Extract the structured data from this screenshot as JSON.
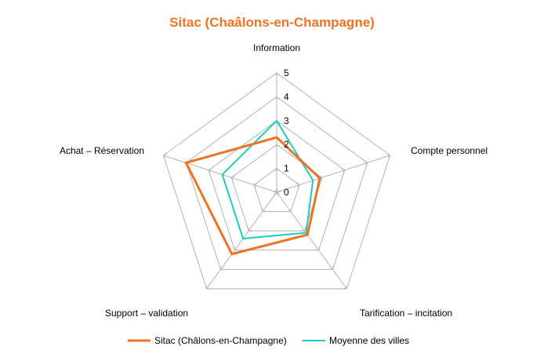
{
  "chart_data": {
    "type": "radar",
    "title": "Sitac (Chaâlons-en-Champagne)",
    "categories": [
      "Information",
      "Compte personnel",
      "Tarification – incitation",
      "Support – validation",
      "Achat – Réservation"
    ],
    "rmin": 0,
    "rmax": 5,
    "ticks": [
      "0",
      "1",
      "2",
      "3",
      "4",
      "5"
    ],
    "grid": true,
    "legend_position": "bottom",
    "series": [
      {
        "name": "Sitac (Châlons-en-Champagne)",
        "color": "#f07322",
        "values": [
          2.3,
          1.9,
          2.2,
          3.2,
          4.0
        ]
      },
      {
        "name": "Moyenne des villes",
        "color": "#1ec9c9",
        "values": [
          3.0,
          1.6,
          2.1,
          2.4,
          2.4
        ]
      }
    ]
  }
}
